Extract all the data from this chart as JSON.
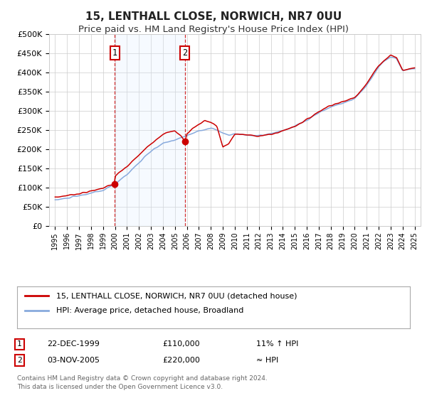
{
  "title": "15, LENTHALL CLOSE, NORWICH, NR7 0UU",
  "subtitle": "Price paid vs. HM Land Registry's House Price Index (HPI)",
  "ylim": [
    0,
    500000
  ],
  "yticks": [
    0,
    50000,
    100000,
    150000,
    200000,
    250000,
    300000,
    350000,
    400000,
    450000,
    500000
  ],
  "ytick_labels": [
    "£0",
    "£50K",
    "£100K",
    "£150K",
    "£200K",
    "£250K",
    "£300K",
    "£350K",
    "£400K",
    "£450K",
    "£500K"
  ],
  "background_color": "#ffffff",
  "plot_bg_color": "#ffffff",
  "grid_color": "#cccccc",
  "line1_color": "#cc0000",
  "line2_color": "#88aadd",
  "sale1_date": 1999.97,
  "sale1_price": 110000,
  "sale2_date": 2005.84,
  "sale2_price": 220000,
  "shade_color": "#ddeeff",
  "legend1_label": "15, LENTHALL CLOSE, NORWICH, NR7 0UU (detached house)",
  "legend2_label": "HPI: Average price, detached house, Broadland",
  "annot1_num": "1",
  "annot1_date": "22-DEC-1999",
  "annot1_price": "£110,000",
  "annot1_rel": "11% ↑ HPI",
  "annot2_num": "2",
  "annot2_date": "03-NOV-2005",
  "annot2_price": "£220,000",
  "annot2_rel": "≈ HPI",
  "footer": "Contains HM Land Registry data © Crown copyright and database right 2024.\nThis data is licensed under the Open Government Licence v3.0.",
  "title_fontsize": 11,
  "subtitle_fontsize": 9.5,
  "hpi_x": [
    1995,
    1996,
    1997,
    1998,
    1999,
    2000,
    2001,
    2002,
    2003,
    2004,
    2005,
    2006,
    2007,
    2008,
    2008.5,
    2009,
    2009.5,
    2010,
    2011,
    2012,
    2013,
    2014,
    2015,
    2016,
    2017,
    2018,
    2019,
    2020,
    2021,
    2022,
    2022.5,
    2023,
    2023.5,
    2024,
    2025
  ],
  "hpi_y": [
    68000,
    73000,
    79000,
    86000,
    93000,
    110000,
    135000,
    165000,
    195000,
    215000,
    225000,
    235000,
    248000,
    255000,
    250000,
    242000,
    238000,
    240000,
    237000,
    235000,
    240000,
    248000,
    260000,
    275000,
    295000,
    310000,
    320000,
    332000,
    365000,
    415000,
    430000,
    440000,
    435000,
    405000,
    410000
  ],
  "pp_x": [
    1995,
    1996,
    1997,
    1998,
    1999,
    1999.97,
    2000,
    2001,
    2002,
    2003,
    2004,
    2005,
    2005.5,
    2005.84,
    2006,
    2006.5,
    2007,
    2007.5,
    2008,
    2008.5,
    2009,
    2009.5,
    2010,
    2011,
    2012,
    2013,
    2014,
    2015,
    2016,
    2017,
    2018,
    2019,
    2020,
    2021,
    2022,
    2022.5,
    2023,
    2023.5,
    2024,
    2025
  ],
  "pp_y": [
    75000,
    80000,
    85000,
    91000,
    100000,
    110000,
    130000,
    155000,
    185000,
    215000,
    240000,
    248000,
    235000,
    220000,
    240000,
    255000,
    265000,
    275000,
    270000,
    260000,
    205000,
    215000,
    240000,
    237000,
    235000,
    238000,
    248000,
    260000,
    277000,
    298000,
    315000,
    323000,
    335000,
    370000,
    418000,
    432000,
    445000,
    438000,
    405000,
    412000
  ]
}
